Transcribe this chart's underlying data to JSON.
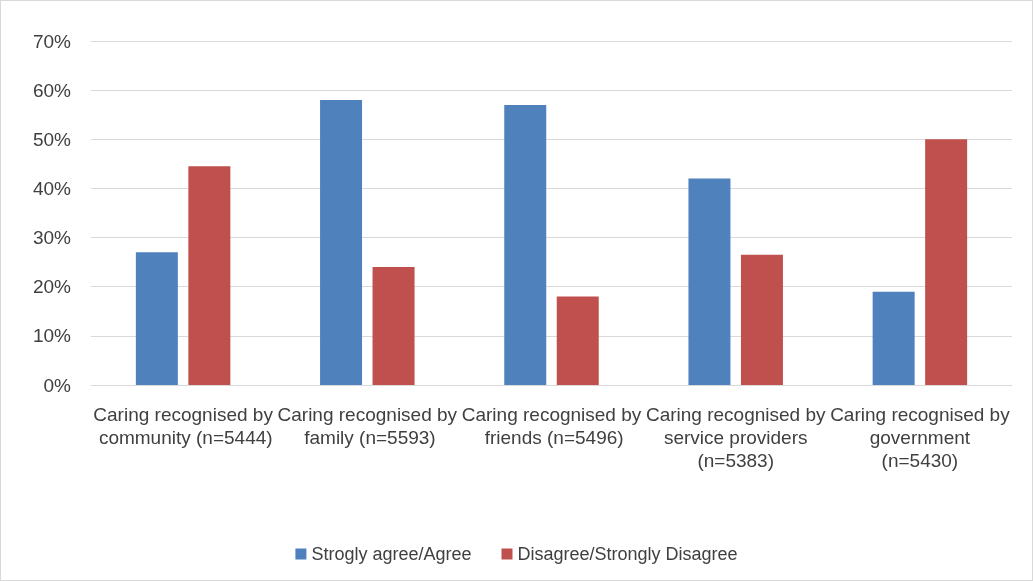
{
  "chart_data": {
    "type": "bar",
    "categories": [
      "Caring recognised by community (n=5444)",
      "Caring recognised by family (n=5593)",
      "Caring recognised by friends (n=5496)",
      "Caring recognised by service providers (n=5383)",
      "Caring recognised by government (n=5430)"
    ],
    "series": [
      {
        "name": "Strogly agree/Agree",
        "color": "#4f81bd",
        "values": [
          27,
          58,
          57,
          42,
          19
        ]
      },
      {
        "name": "Disagree/Strongly Disagree",
        "color": "#c0504d",
        "values": [
          44.5,
          24,
          18,
          26.5,
          50
        ]
      }
    ],
    "ylim": [
      0,
      70
    ],
    "yticks": [
      {
        "value": 0,
        "label": "0%"
      },
      {
        "value": 10,
        "label": "10%"
      },
      {
        "value": 20,
        "label": "20%"
      },
      {
        "value": 30,
        "label": "30%"
      },
      {
        "value": 40,
        "label": "40%"
      },
      {
        "value": 50,
        "label": "50%"
      },
      {
        "value": 60,
        "label": "60%"
      },
      {
        "value": 70,
        "label": "70%"
      }
    ],
    "grid": "y",
    "legend": "bottom"
  }
}
